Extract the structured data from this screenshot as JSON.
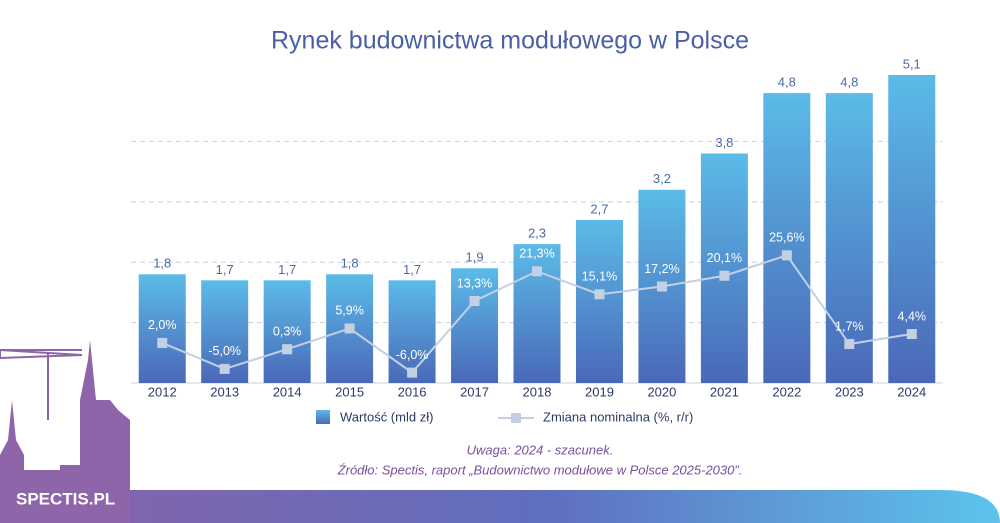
{
  "chart_data": {
    "type": "bar_line",
    "title": "Rynek budownictwa modułowego w Polsce",
    "categories": [
      "2012",
      "2013",
      "2014",
      "2015",
      "2016",
      "2017",
      "2018",
      "2019",
      "2020",
      "2021",
      "2022",
      "2023",
      "2024"
    ],
    "series": [
      {
        "name": "Wartość (mld zł)",
        "color": "#5bbbe8",
        "values": [
          1.8,
          1.7,
          1.7,
          1.8,
          1.7,
          1.9,
          2.3,
          2.7,
          3.2,
          3.8,
          4.8,
          4.8,
          5.1
        ],
        "value_labels": [
          "1,8",
          "1,7",
          "1,7",
          "1,8",
          "1,7",
          "1,9",
          "2,3",
          "2,7",
          "3,2",
          "3,8",
          "4,8",
          "4,8",
          "5,1"
        ]
      },
      {
        "name": "Zmiana nominalna (%, r/r)",
        "color": "#c3d0e4",
        "axis": "y2",
        "values": [
          2.0,
          -5.0,
          0.3,
          5.9,
          -6.0,
          13.3,
          21.3,
          15.1,
          17.2,
          20.1,
          25.6,
          1.7,
          4.4
        ],
        "value_labels": [
          "2,0%",
          "-5,0%",
          "0,3%",
          "5,9%",
          "-6,0%",
          "13,3%",
          "21,3%",
          "15,1%",
          "17,2%",
          "20,1%",
          "25,6%",
          "1,7%",
          "4,4%"
        ]
      }
    ],
    "ylim": [
      0,
      5.1
    ],
    "yticks": [
      1,
      2,
      3,
      4
    ],
    "grid": true,
    "y2lim": [
      -8.8,
      74.2
    ],
    "notes": [
      "Uwaga: 2024 - szacunek.",
      "Źródło: Spectis, raport „Budownictwo modułowe w Polsce 2025-2030”."
    ],
    "logo": "SPECTIS.PL"
  }
}
